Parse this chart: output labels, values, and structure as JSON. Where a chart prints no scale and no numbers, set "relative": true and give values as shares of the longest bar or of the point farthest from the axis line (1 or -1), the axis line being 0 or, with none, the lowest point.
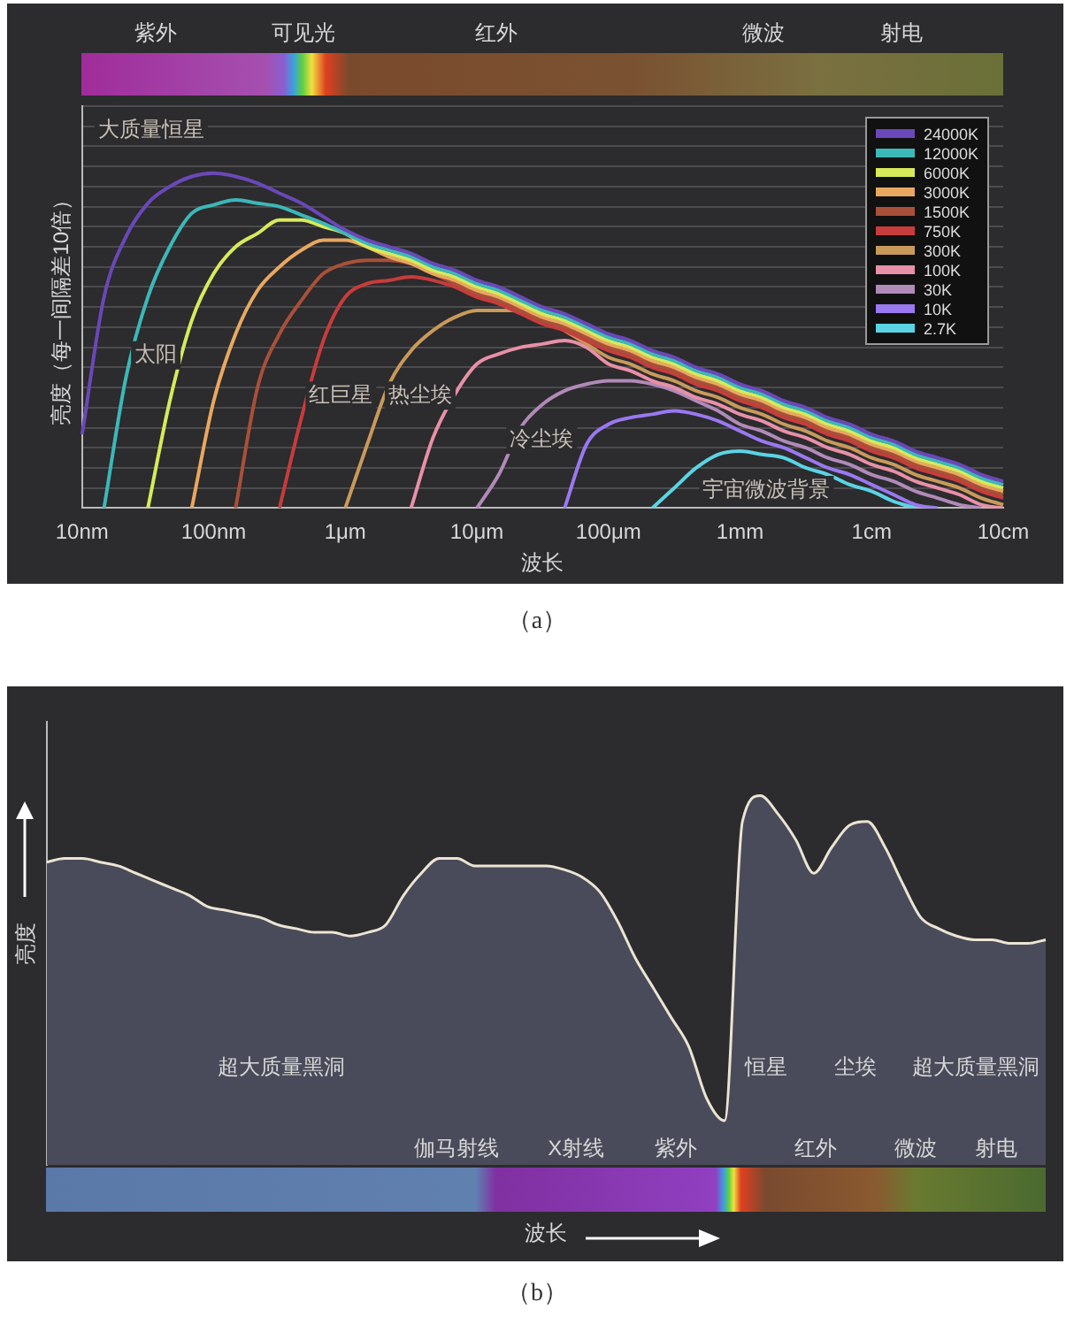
{
  "chart_data": [
    {
      "type": "line",
      "xlabel": "波长",
      "ylabel": "亮度（每一间隔差10倍）",
      "relative": true,
      "grid": "y",
      "legend": "top right",
      "marker": "none",
      "categories": [
        "10nm",
        null,
        null,
        null,
        null,
        null,
        "100nm",
        null,
        null,
        null,
        null,
        null,
        "1μm",
        null,
        null,
        null,
        null,
        null,
        "10μm",
        null,
        null,
        null,
        null,
        null,
        "100μm",
        null,
        null,
        null,
        null,
        null,
        "1mm",
        null,
        null,
        null,
        null,
        null,
        "1cm",
        null,
        null,
        null,
        null,
        null,
        "10cm"
      ],
      "series": [
        {
          "name": "24000K",
          "color": "#6a48b8",
          "values": [
            0.22,
            0.63,
            0.81,
            0.91,
            0.96,
            0.99,
            1.0,
            0.99,
            0.97,
            0.94,
            0.91,
            0.87,
            0.83,
            0.8,
            0.78,
            0.76,
            0.73,
            0.71,
            0.68,
            0.66,
            0.63,
            0.6,
            0.58,
            0.55,
            0.52,
            0.5,
            0.47,
            0.45,
            0.42,
            0.4,
            0.37,
            0.35,
            0.32,
            0.3,
            0.27,
            0.25,
            0.22,
            0.2,
            0.17,
            0.15,
            0.13,
            0.1,
            0.08
          ]
        },
        {
          "name": "12000K",
          "color": "#3cb8b8",
          "values": [
            null,
            0,
            0.39,
            0.63,
            0.78,
            0.88,
            0.905,
            0.92,
            0.91,
            0.9,
            0.875,
            0.85,
            0.82,
            0.79,
            0.77,
            0.75,
            0.72,
            0.7,
            0.67,
            0.65,
            0.62,
            0.59,
            0.57,
            0.54,
            0.51,
            0.49,
            0.46,
            0.44,
            0.41,
            0.39,
            0.36,
            0.34,
            0.31,
            0.29,
            0.26,
            0.24,
            0.21,
            0.19,
            0.16,
            0.14,
            0.12,
            0.09,
            0.07
          ]
        },
        {
          "name": "6000K",
          "color": "#d8ea5a",
          "values": [
            null,
            null,
            null,
            0,
            0.32,
            0.56,
            0.7,
            0.78,
            0.82,
            0.86,
            0.86,
            0.84,
            0.82,
            0.78,
            0.76,
            0.74,
            0.71,
            0.69,
            0.66,
            0.64,
            0.61,
            0.58,
            0.56,
            0.53,
            0.5,
            0.48,
            0.45,
            0.43,
            0.4,
            0.38,
            0.35,
            0.33,
            0.3,
            0.28,
            0.25,
            0.23,
            0.2,
            0.18,
            0.15,
            0.13,
            0.11,
            0.08,
            0.06
          ]
        },
        {
          "name": "3000K",
          "color": "#e8a860",
          "values": [
            null,
            null,
            null,
            null,
            null,
            0,
            0.32,
            0.52,
            0.65,
            0.72,
            0.77,
            0.8,
            0.8,
            0.78,
            0.75,
            0.73,
            0.7,
            0.68,
            0.65,
            0.63,
            0.6,
            0.57,
            0.55,
            0.52,
            0.49,
            0.47,
            0.44,
            0.42,
            0.39,
            0.37,
            0.34,
            0.32,
            0.29,
            0.27,
            0.24,
            0.22,
            0.19,
            0.17,
            0.14,
            0.12,
            0.1,
            0.07,
            0.05
          ]
        },
        {
          "name": "1500K",
          "color": "#a8503a",
          "values": [
            null,
            null,
            null,
            null,
            null,
            null,
            null,
            0,
            0.36,
            0.52,
            0.62,
            0.7,
            0.73,
            0.74,
            0.74,
            0.73,
            0.7,
            0.67,
            0.64,
            0.62,
            0.59,
            0.56,
            0.54,
            0.51,
            0.48,
            0.46,
            0.43,
            0.41,
            0.38,
            0.36,
            0.33,
            0.31,
            0.28,
            0.26,
            0.23,
            0.21,
            0.18,
            0.16,
            0.13,
            0.11,
            0.09,
            0.06,
            0.04
          ]
        },
        {
          "name": "750K",
          "color": "#c83c3c",
          "values": [
            null,
            null,
            null,
            null,
            null,
            null,
            null,
            null,
            null,
            0,
            0.27,
            0.5,
            0.63,
            0.67,
            0.68,
            0.69,
            0.68,
            0.66,
            0.63,
            0.61,
            0.58,
            0.55,
            0.53,
            0.5,
            0.47,
            0.45,
            0.42,
            0.4,
            0.37,
            0.35,
            0.32,
            0.3,
            0.27,
            0.25,
            0.22,
            0.2,
            0.17,
            0.15,
            0.12,
            0.1,
            0.08,
            0.05,
            0.03
          ]
        },
        {
          "name": "300K",
          "color": "#c89a5a",
          "values": [
            null,
            null,
            null,
            null,
            null,
            null,
            null,
            null,
            null,
            null,
            null,
            null,
            0,
            0.19,
            0.37,
            0.47,
            0.53,
            0.57,
            0.59,
            0.59,
            0.59,
            0.57,
            0.53,
            0.49,
            0.45,
            0.43,
            0.4,
            0.38,
            0.35,
            0.33,
            0.3,
            0.28,
            0.25,
            0.23,
            0.2,
            0.18,
            0.15,
            0.13,
            0.1,
            0.08,
            0.06,
            0.03,
            0.01
          ]
        },
        {
          "name": "100K",
          "color": "#e890a8",
          "values": [
            null,
            null,
            null,
            null,
            null,
            null,
            null,
            null,
            null,
            null,
            null,
            null,
            null,
            null,
            null,
            0,
            0.21,
            0.34,
            0.43,
            0.46,
            0.48,
            0.49,
            0.5,
            0.48,
            0.43,
            0.41,
            0.38,
            0.36,
            0.33,
            0.31,
            0.28,
            0.26,
            0.23,
            0.21,
            0.18,
            0.16,
            0.13,
            0.11,
            0.08,
            0.06,
            0.04,
            0.01,
            0
          ]
        },
        {
          "name": "30K",
          "color": "#b08ab8",
          "values": [
            null,
            null,
            null,
            null,
            null,
            null,
            null,
            null,
            null,
            null,
            null,
            null,
            null,
            null,
            null,
            null,
            null,
            null,
            0,
            0.1,
            0.24,
            0.31,
            0.35,
            0.37,
            0.38,
            0.38,
            0.37,
            0.35,
            0.32,
            0.29,
            0.25,
            0.23,
            0.2,
            0.18,
            0.15,
            0.13,
            0.1,
            0.08,
            0.05,
            0.03,
            0.01,
            0,
            null
          ]
        },
        {
          "name": "10K",
          "color": "#9a78f0",
          "values": [
            null,
            null,
            null,
            null,
            null,
            null,
            null,
            null,
            null,
            null,
            null,
            null,
            null,
            null,
            null,
            null,
            null,
            null,
            null,
            null,
            null,
            null,
            0,
            0.19,
            0.25,
            0.27,
            0.28,
            0.29,
            0.28,
            0.26,
            0.23,
            0.2,
            0.18,
            0.15,
            0.12,
            0.1,
            0.07,
            0.04,
            0.01,
            0,
            null,
            null,
            null
          ]
        },
        {
          "name": "2.7K",
          "color": "#5ad4e4",
          "values": [
            null,
            null,
            null,
            null,
            null,
            null,
            null,
            null,
            null,
            null,
            null,
            null,
            null,
            null,
            null,
            null,
            null,
            null,
            null,
            null,
            null,
            null,
            null,
            null,
            null,
            null,
            0,
            0.06,
            0.12,
            0.16,
            0.17,
            0.16,
            0.15,
            0.12,
            0.1,
            0.07,
            0.05,
            0.02,
            0,
            null,
            null,
            null,
            null
          ]
        }
      ],
      "annotations": [
        "紫外",
        "可见光",
        "红外",
        "微波",
        "射电",
        "大质量恒星",
        "太阳",
        "红巨星",
        "热尘埃",
        "冷尘埃",
        "宇宙微波背景",
        "（a）"
      ]
    },
    {
      "type": "area",
      "xlabel": "波长",
      "ylabel": "亮度",
      "relative": true,
      "categories": [
        null,
        null,
        null,
        null,
        null,
        null,
        null,
        null,
        null,
        null,
        null,
        null,
        null,
        null,
        null,
        null,
        null,
        null,
        null,
        null,
        null,
        null,
        null,
        null,
        null,
        null,
        null,
        null,
        null,
        null,
        null,
        null,
        null,
        null,
        null,
        null,
        null,
        null,
        null,
        null,
        null,
        null,
        null,
        null,
        null,
        null,
        null,
        null,
        null,
        null,
        null,
        null,
        null,
        null,
        null,
        null,
        null
      ],
      "series": [
        {
          "color": "#4a4b5a",
          "values": [
            0.82,
            0.83,
            0.83,
            0.82,
            0.81,
            0.79,
            0.77,
            0.75,
            0.73,
            0.7,
            0.69,
            0.68,
            0.67,
            0.65,
            0.64,
            0.63,
            0.63,
            0.62,
            0.63,
            0.65,
            0.73,
            0.79,
            0.83,
            0.83,
            0.81,
            0.81,
            0.81,
            0.81,
            0.81,
            0.8,
            0.78,
            0.74,
            0.66,
            0.56,
            0.48,
            0.4,
            0.32,
            0.18,
            0.12,
            0.93,
            1.0,
            0.95,
            0.88,
            0.79,
            0.86,
            0.92,
            0.93,
            0.86,
            0.76,
            0.67,
            0.64,
            0.62,
            0.61,
            0.61,
            0.6,
            0.6,
            0.61
          ]
        }
      ],
      "annotations": [
        "超大质量黑洞",
        "恒星",
        "尘埃",
        "超大质量黑洞",
        "伽马射线",
        "X射线",
        "紫外",
        "红外",
        "微波",
        "射电",
        "（b）"
      ]
    }
  ]
}
